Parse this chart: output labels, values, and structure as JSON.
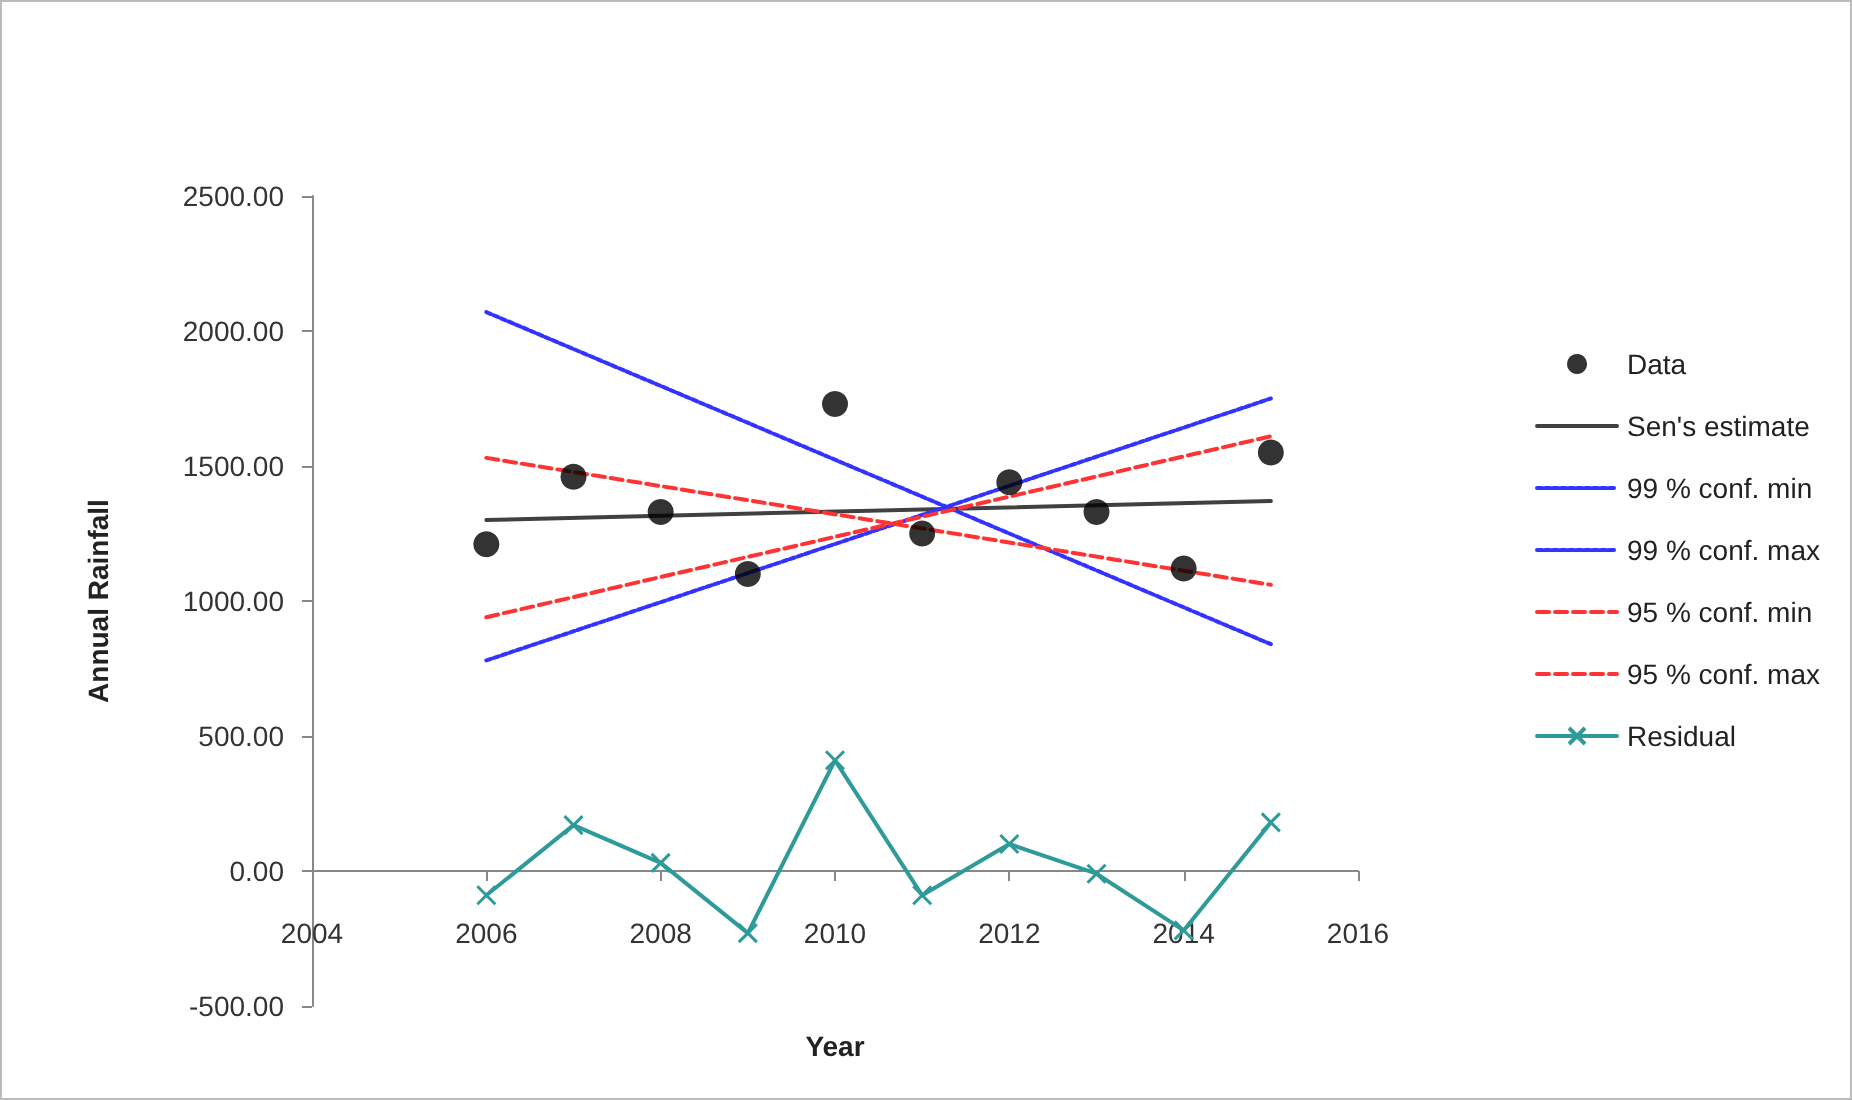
{
  "chart_data": {
    "type": "line",
    "xlabel": "Year",
    "ylabel": "Annual Rainfall",
    "xlim": [
      2004,
      2016
    ],
    "xticks": [
      2004,
      2006,
      2008,
      2010,
      2012,
      2014,
      2016
    ],
    "ylim": [
      -500,
      2500
    ],
    "yticks": [
      {
        "value": -500,
        "label": "-500.00"
      },
      {
        "value": 0,
        "label": "0.00"
      },
      {
        "value": 500,
        "label": "500.00"
      },
      {
        "value": 1000,
        "label": "1000.00"
      },
      {
        "value": 1500,
        "label": "1500.00"
      },
      {
        "value": 2000,
        "label": "2000.00"
      },
      {
        "value": 2500,
        "label": "2500.00"
      }
    ],
    "legend": "right",
    "series": [
      {
        "name": "Data",
        "type": "scatter",
        "marker": "circle",
        "color": "#000000",
        "x": [
          2006,
          2007,
          2008,
          2009,
          2010,
          2011,
          2012,
          2013,
          2014,
          2015
        ],
        "values": [
          1210,
          1460,
          1330,
          1100,
          1730,
          1250,
          1440,
          1330,
          1120,
          1550
        ]
      },
      {
        "name": "Sen's estimate",
        "marker": "none",
        "line_style": "solid",
        "color": "#404040",
        "x": [
          2006,
          2015
        ],
        "values": [
          1300,
          1370
        ]
      },
      {
        "name": "99 % conf. min",
        "marker": "none",
        "line_style": "dotted",
        "color": "#3333ff",
        "x": [
          2006,
          2015
        ],
        "values": [
          2070,
          840
        ]
      },
      {
        "name": "99 % conf. max",
        "marker": "none",
        "line_style": "dotted",
        "color": "#3333ff",
        "x": [
          2006,
          2015
        ],
        "values": [
          780,
          1750
        ]
      },
      {
        "name": "95 % conf. min",
        "marker": "none",
        "line_style": "dashed",
        "color": "#ff3333",
        "x": [
          2006,
          2015
        ],
        "values": [
          1530,
          1060
        ]
      },
      {
        "name": "95 % conf. max",
        "marker": "none",
        "line_style": "dashed",
        "color": "#ff3333",
        "x": [
          2006,
          2015
        ],
        "values": [
          940,
          1610
        ]
      },
      {
        "name": "Residual",
        "marker": "cross",
        "line_style": "solid",
        "color": "#2e9a9a",
        "x": [
          2006,
          2007,
          2008,
          2009,
          2010,
          2011,
          2012,
          2013,
          2014,
          2015
        ],
        "values": [
          -90,
          170,
          30,
          -230,
          410,
          -90,
          100,
          -10,
          -220,
          180
        ]
      }
    ]
  }
}
